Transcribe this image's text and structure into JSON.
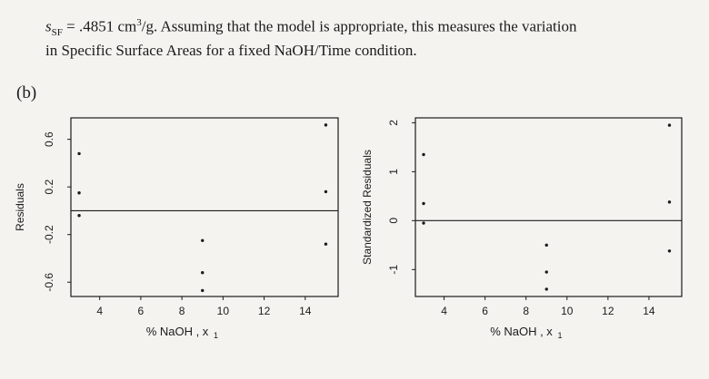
{
  "text": {
    "s_symbol": "s",
    "s_subscript": "SF",
    "equation_rest": " = .4851 cm",
    "superscript": "3",
    "line1_rest": "/g.  Assuming that the model is appropriate, this measures the variation",
    "line2": "in Specific Surface Areas for a fixed NaOH/Time condition.",
    "part_label": "(b)"
  },
  "chart_data": [
    {
      "type": "scatter",
      "title": "",
      "xlabel": "% NaOH , x",
      "xlabel_subscript": "1",
      "ylabel": "Residuals",
      "xlim": [
        2.6,
        15.6
      ],
      "ylim": [
        -0.72,
        0.78
      ],
      "xticks": [
        4,
        6,
        8,
        10,
        12,
        14
      ],
      "yticks": [
        -0.6,
        -0.2,
        0.2,
        0.6
      ],
      "reference_line": 0,
      "grid": false,
      "points": [
        {
          "x": 3,
          "y": 0.48
        },
        {
          "x": 3,
          "y": 0.15
        },
        {
          "x": 3,
          "y": -0.04
        },
        {
          "x": 9,
          "y": -0.25
        },
        {
          "x": 9,
          "y": -0.52
        },
        {
          "x": 9,
          "y": -0.67
        },
        {
          "x": 15,
          "y": 0.72
        },
        {
          "x": 15,
          "y": 0.16
        },
        {
          "x": 15,
          "y": -0.28
        }
      ]
    },
    {
      "type": "scatter",
      "title": "",
      "xlabel": "% NaOH , x",
      "xlabel_subscript": "1",
      "ylabel": "Standardized Residuals",
      "xlim": [
        2.6,
        15.6
      ],
      "ylim": [
        -1.55,
        2.1
      ],
      "xticks": [
        4,
        6,
        8,
        10,
        12,
        14
      ],
      "yticks": [
        -1,
        0,
        1,
        2
      ],
      "reference_line": 0,
      "grid": false,
      "points": [
        {
          "x": 3,
          "y": 1.35
        },
        {
          "x": 3,
          "y": 0.35
        },
        {
          "x": 3,
          "y": -0.05
        },
        {
          "x": 9,
          "y": -0.5
        },
        {
          "x": 9,
          "y": -1.05
        },
        {
          "x": 9,
          "y": -1.4
        },
        {
          "x": 15,
          "y": 1.95
        },
        {
          "x": 15,
          "y": 0.38
        },
        {
          "x": 15,
          "y": -0.62
        }
      ]
    }
  ]
}
